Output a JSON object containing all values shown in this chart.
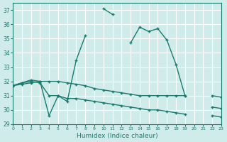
{
  "xlabel": "Humidex (Indice chaleur)",
  "ylabel": "",
  "background_color": "#d0ecea",
  "grid_color": "#ffffff",
  "line_color": "#1a7a6e",
  "xlim": [
    0,
    23
  ],
  "ylim": [
    29,
    37.5
  ],
  "yticks": [
    29,
    30,
    31,
    32,
    33,
    34,
    35,
    36,
    37
  ],
  "xticks": [
    0,
    1,
    2,
    3,
    4,
    5,
    6,
    7,
    8,
    9,
    10,
    11,
    12,
    13,
    14,
    15,
    16,
    17,
    18,
    19,
    20,
    21,
    22,
    23
  ],
  "series": [
    {
      "x": [
        0,
        1,
        2,
        3,
        4,
        5,
        6,
        7,
        8,
        9,
        10,
        11,
        12,
        13,
        14,
        15,
        16,
        17,
        18,
        19,
        20,
        21,
        22,
        23
      ],
      "y": [
        31.7,
        31.9,
        32.1,
        32.0,
        29.6,
        31.0,
        30.6,
        33.5,
        35.2,
        null,
        37.1,
        36.7,
        null,
        34.7,
        35.8,
        35.5,
        35.7,
        34.9,
        33.2,
        31.0,
        null,
        null,
        30.2,
        30.1
      ]
    },
    {
      "x": [
        0,
        1,
        2,
        3,
        4,
        5,
        6,
        7,
        8,
        9,
        10,
        11,
        12,
        13,
        14,
        15,
        16,
        17,
        18,
        19,
        20,
        21,
        22,
        23
      ],
      "y": [
        31.7,
        31.9,
        32.0,
        31.9,
        31.0,
        31.0,
        30.8,
        30.8,
        30.7,
        30.6,
        30.5,
        30.4,
        30.3,
        30.2,
        30.1,
        30.0,
        30.0,
        29.9,
        29.8,
        29.7,
        null,
        null,
        29.6,
        29.5
      ]
    },
    {
      "x": [
        0,
        1,
        2,
        3,
        4,
        5,
        6,
        7,
        8,
        9,
        10,
        11,
        12,
        13,
        14,
        15,
        16,
        17,
        18,
        19,
        20,
        21,
        22,
        23
      ],
      "y": [
        31.7,
        31.8,
        31.9,
        32.0,
        32.0,
        32.0,
        31.9,
        31.8,
        31.7,
        31.5,
        31.4,
        31.3,
        31.2,
        31.1,
        31.0,
        31.0,
        31.0,
        31.0,
        31.0,
        31.0,
        null,
        null,
        31.0,
        30.9
      ]
    }
  ]
}
